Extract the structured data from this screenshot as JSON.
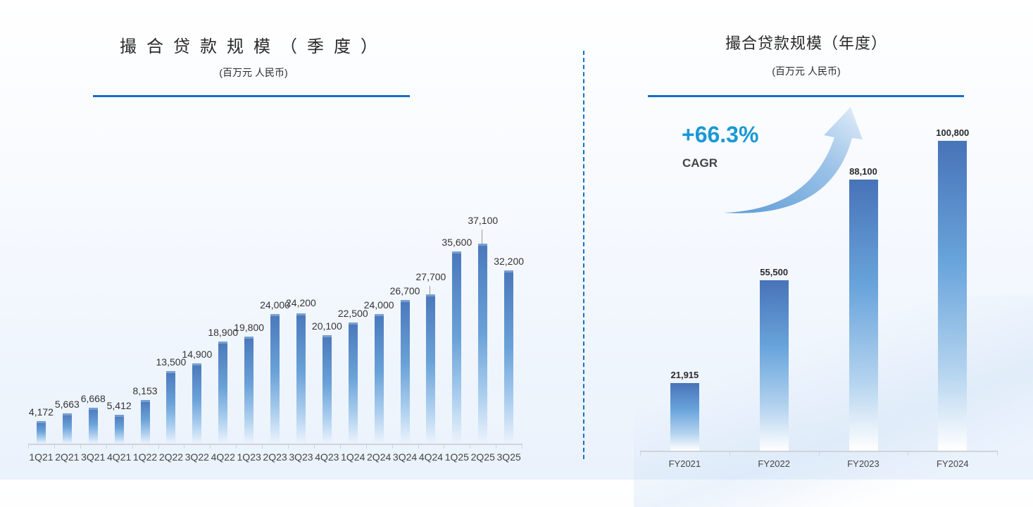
{
  "left_panel": {
    "title": "撮合贷款规模（季度）",
    "subtitle": "(百万元 人民币)"
  },
  "right_panel": {
    "title": "撮合贷款规模（年度）",
    "subtitle": "(百万元 人民币)",
    "cagr_value": "+66.3%",
    "cagr_label": "CAGR"
  },
  "colors": {
    "accent_rule": "#1470c8",
    "bar_top": "#4a78bb",
    "bar_mid": "#6aa2d8",
    "cagr_text": "#1a98d5"
  },
  "chart_data": [
    {
      "type": "bar",
      "title": "撮合贷款规模（季度）",
      "subtitle": "(百万元 人民币)",
      "xlabel": "",
      "ylabel": "百万元 人民币",
      "categories": [
        "1Q21",
        "2Q21",
        "3Q21",
        "4Q21",
        "1Q22",
        "2Q22",
        "3Q22",
        "4Q22",
        "1Q23",
        "2Q23",
        "3Q23",
        "4Q23",
        "1Q24",
        "2Q24",
        "3Q24",
        "4Q24",
        "1Q25",
        "2Q25",
        "3Q25"
      ],
      "values": [
        4172,
        5663,
        6668,
        5412,
        8153,
        13500,
        14900,
        18900,
        19800,
        24000,
        24200,
        20100,
        22500,
        24000,
        26700,
        27700,
        35600,
        37100,
        32200
      ],
      "labels": [
        "4,172",
        "5,663",
        "6,668",
        "5,412",
        "8,153",
        "13,500",
        "14,900",
        "18,900",
        "19,800",
        "24,000",
        "24,200",
        "20,100",
        "22,500",
        "24,000",
        "26,700",
        "27,700",
        "35,600",
        "37,100",
        "32,200"
      ],
      "ylim": [
        0,
        37100
      ],
      "grid": false,
      "legend": null
    },
    {
      "type": "bar",
      "title": "撮合贷款规模（年度）",
      "subtitle": "(百万元 人民币)",
      "xlabel": "",
      "ylabel": "百万元 人民币",
      "categories": [
        "FY2021",
        "FY2022",
        "FY2023",
        "FY2024"
      ],
      "values": [
        21915,
        55500,
        88100,
        100800
      ],
      "labels": [
        "21,915",
        "55,500",
        "88,100",
        "100,800"
      ],
      "ylim": [
        0,
        100800
      ],
      "grid": false,
      "legend": null,
      "annotations": [
        {
          "text": "+66.3%",
          "sub": "CAGR",
          "type": "growth-arrow"
        }
      ]
    }
  ]
}
